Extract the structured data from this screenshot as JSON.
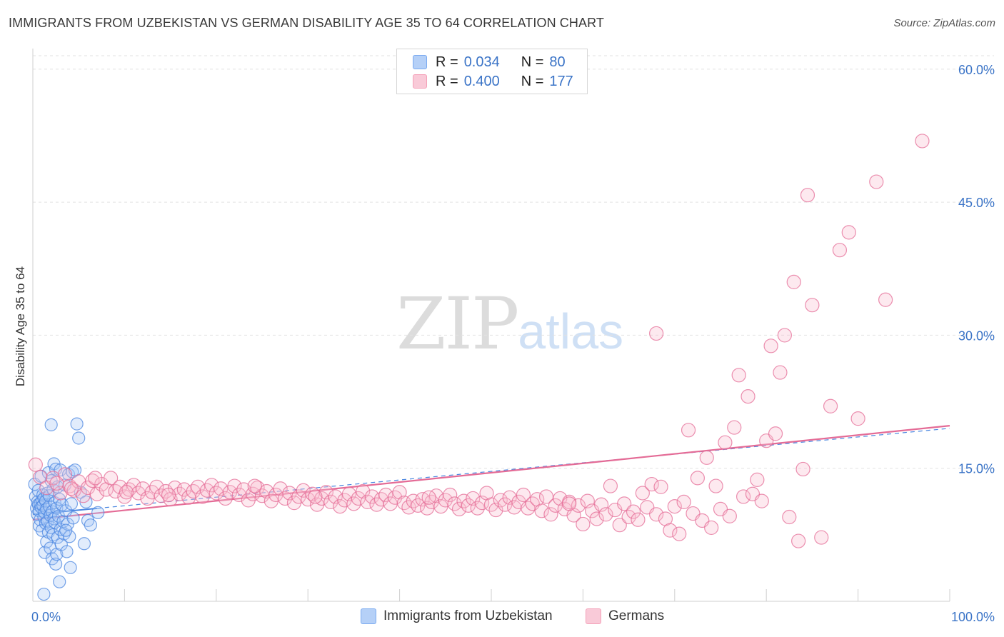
{
  "title": "IMMIGRANTS FROM UZBEKISTAN VS GERMAN DISABILITY AGE 35 TO 64 CORRELATION CHART",
  "source": "Source: ZipAtlas.com",
  "watermark": {
    "zip": "ZIP",
    "atlas": "atlas"
  },
  "legend": {
    "series": [
      {
        "r_label": "R =",
        "r_value": "0.034",
        "n_label": "N =",
        "n_value": "80",
        "color": "#7aaaf0"
      },
      {
        "r_label": "R =",
        "r_value": "0.400",
        "n_label": "N =",
        "n_value": "177",
        "color": "#f4a0b8"
      }
    ]
  },
  "bottom_legend": [
    "Immigrants from Uzbekistan",
    "Germans"
  ],
  "chart_data": {
    "type": "scatter",
    "title": "IMMIGRANTS FROM UZBEKISTAN VS GERMAN DISABILITY AGE 35 TO 64 CORRELATION CHART",
    "xlabel": "",
    "ylabel": "Disability Age 35 to 64",
    "xlim": [
      0,
      100
    ],
    "ylim": [
      0,
      62
    ],
    "x_tick_labels": [
      "0.0%",
      "100.0%"
    ],
    "y_ticks": [
      15,
      30,
      45,
      60
    ],
    "y_tick_labels": [
      "15.0%",
      "30.0%",
      "45.0%",
      "60.0%"
    ],
    "grid": true,
    "legend_position": "top-center",
    "series": [
      {
        "name": "Immigrants from Uzbekistan",
        "color": "#4a86e0",
        "fill": "#a9c8f5",
        "trend": {
          "x": [
            0,
            100
          ],
          "y": [
            9.8,
            19.5
          ],
          "style": "solid-then-dashed",
          "solid_until_x": 7
        },
        "points": [
          [
            0.2,
            13.2
          ],
          [
            0.3,
            11.8
          ],
          [
            0.4,
            10.5
          ],
          [
            0.5,
            11.2
          ],
          [
            0.5,
            9.8
          ],
          [
            0.6,
            10.9
          ],
          [
            0.6,
            12.5
          ],
          [
            0.7,
            10.2
          ],
          [
            0.7,
            8.5
          ],
          [
            0.8,
            11.0
          ],
          [
            0.8,
            9.2
          ],
          [
            0.9,
            10.6
          ],
          [
            0.9,
            14.1
          ],
          [
            1.0,
            11.4
          ],
          [
            1.0,
            8.0
          ],
          [
            1.1,
            10.8
          ],
          [
            1.1,
            12.0
          ],
          [
            1.2,
            9.5
          ],
          [
            1.2,
            11.6
          ],
          [
            1.3,
            10.0
          ],
          [
            1.3,
            5.5
          ],
          [
            1.4,
            11.3
          ],
          [
            1.4,
            8.8
          ],
          [
            1.5,
            6.7
          ],
          [
            1.5,
            10.4
          ],
          [
            1.6,
            12.2
          ],
          [
            1.6,
            9.0
          ],
          [
            1.7,
            7.8
          ],
          [
            1.7,
            14.5
          ],
          [
            1.8,
            10.7
          ],
          [
            1.8,
            11.9
          ],
          [
            1.9,
            6.0
          ],
          [
            1.9,
            9.7
          ],
          [
            2.0,
            13.6
          ],
          [
            2.0,
            8.3
          ],
          [
            2.1,
            10.1
          ],
          [
            2.1,
            4.8
          ],
          [
            2.2,
            7.5
          ],
          [
            2.2,
            12.6
          ],
          [
            2.3,
            9.3
          ],
          [
            2.3,
            15.5
          ],
          [
            2.4,
            11.1
          ],
          [
            2.4,
            8.9
          ],
          [
            2.5,
            4.2
          ],
          [
            2.5,
            14.9
          ],
          [
            2.6,
            10.5
          ],
          [
            2.6,
            5.3
          ],
          [
            2.7,
            7.2
          ],
          [
            2.7,
            12.9
          ],
          [
            2.8,
            9.6
          ],
          [
            2.9,
            2.2
          ],
          [
            2.9,
            11.5
          ],
          [
            3.0,
            8.1
          ],
          [
            3.0,
            14.8
          ],
          [
            3.1,
            6.4
          ],
          [
            3.2,
            10.9
          ],
          [
            3.3,
            9.0
          ],
          [
            3.4,
            7.6
          ],
          [
            3.5,
            13.1
          ],
          [
            3.6,
            10.2
          ],
          [
            3.7,
            5.6
          ],
          [
            3.8,
            8.7
          ],
          [
            3.9,
            14.3
          ],
          [
            4.0,
            7.3
          ],
          [
            4.1,
            3.8
          ],
          [
            4.2,
            11.0
          ],
          [
            4.3,
            14.6
          ],
          [
            4.4,
            9.4
          ],
          [
            4.6,
            14.8
          ],
          [
            4.8,
            20.0
          ],
          [
            5.0,
            18.4
          ],
          [
            5.2,
            12.3
          ],
          [
            5.6,
            6.5
          ],
          [
            5.8,
            11.2
          ],
          [
            6.0,
            9.1
          ],
          [
            6.3,
            8.6
          ],
          [
            7.1,
            10.0
          ],
          [
            1.2,
            0.8
          ],
          [
            3.6,
            8.0
          ],
          [
            2.0,
            19.9
          ]
        ]
      },
      {
        "name": "Germans",
        "color": "#e46b96",
        "fill": "#f8c0d2",
        "trend": {
          "x": [
            0,
            100
          ],
          "y": [
            9.2,
            19.8
          ],
          "style": "solid"
        },
        "points": [
          [
            0.3,
            15.4
          ],
          [
            0.8,
            14.0
          ],
          [
            1.5,
            12.8
          ],
          [
            2.2,
            13.9
          ],
          [
            3.0,
            12.2
          ],
          [
            3.5,
            14.3
          ],
          [
            4.0,
            13.0
          ],
          [
            4.5,
            12.5
          ],
          [
            5.0,
            13.5
          ],
          [
            5.5,
            11.9
          ],
          [
            6.0,
            12.8
          ],
          [
            6.5,
            13.6
          ],
          [
            7.0,
            12.1
          ],
          [
            7.5,
            13.2
          ],
          [
            8.0,
            12.6
          ],
          [
            8.5,
            13.9
          ],
          [
            9.0,
            12.4
          ],
          [
            9.5,
            12.9
          ],
          [
            10.0,
            11.8
          ],
          [
            10.5,
            12.6
          ],
          [
            11.0,
            13.1
          ],
          [
            11.5,
            12.2
          ],
          [
            12.0,
            12.7
          ],
          [
            12.5,
            11.6
          ],
          [
            13.0,
            12.3
          ],
          [
            13.5,
            12.9
          ],
          [
            14.0,
            11.9
          ],
          [
            14.5,
            12.4
          ],
          [
            15.0,
            11.5
          ],
          [
            15.5,
            12.8
          ],
          [
            16.0,
            12.1
          ],
          [
            16.5,
            12.6
          ],
          [
            17.0,
            11.7
          ],
          [
            17.5,
            12.4
          ],
          [
            18.0,
            12.9
          ],
          [
            18.5,
            11.8
          ],
          [
            19.0,
            12.5
          ],
          [
            19.5,
            13.1
          ],
          [
            20.0,
            12.2
          ],
          [
            20.5,
            12.7
          ],
          [
            21.0,
            11.6
          ],
          [
            21.5,
            12.3
          ],
          [
            22.0,
            13.0
          ],
          [
            22.5,
            12.0
          ],
          [
            23.0,
            12.6
          ],
          [
            23.5,
            11.4
          ],
          [
            24.0,
            12.1
          ],
          [
            24.5,
            12.8
          ],
          [
            25.0,
            11.9
          ],
          [
            25.5,
            12.4
          ],
          [
            26.0,
            11.3
          ],
          [
            26.5,
            12.0
          ],
          [
            27.0,
            12.7
          ],
          [
            27.5,
            11.6
          ],
          [
            28.0,
            12.2
          ],
          [
            28.5,
            11.1
          ],
          [
            29.0,
            11.8
          ],
          [
            29.5,
            12.5
          ],
          [
            30.0,
            11.5
          ],
          [
            30.5,
            12.1
          ],
          [
            31.0,
            10.9
          ],
          [
            31.5,
            11.6
          ],
          [
            32.0,
            12.3
          ],
          [
            32.5,
            11.2
          ],
          [
            33.0,
            11.8
          ],
          [
            33.5,
            10.7
          ],
          [
            34.0,
            11.4
          ],
          [
            34.5,
            12.1
          ],
          [
            35.0,
            11.0
          ],
          [
            35.5,
            11.6
          ],
          [
            36.0,
            12.4
          ],
          [
            36.5,
            11.2
          ],
          [
            37.0,
            11.8
          ],
          [
            37.5,
            10.9
          ],
          [
            38.0,
            11.5
          ],
          [
            38.5,
            12.0
          ],
          [
            39.0,
            11.0
          ],
          [
            39.5,
            11.7
          ],
          [
            40.0,
            12.3
          ],
          [
            40.5,
            11.1
          ],
          [
            41.0,
            10.6
          ],
          [
            41.5,
            11.3
          ],
          [
            42.0,
            10.8
          ],
          [
            42.5,
            11.5
          ],
          [
            43.0,
            10.5
          ],
          [
            43.5,
            11.2
          ],
          [
            44.0,
            11.9
          ],
          [
            44.5,
            10.7
          ],
          [
            45.0,
            11.4
          ],
          [
            45.5,
            12.0
          ],
          [
            46.0,
            11.0
          ],
          [
            46.5,
            10.4
          ],
          [
            47.0,
            11.3
          ],
          [
            47.5,
            10.8
          ],
          [
            48.0,
            11.6
          ],
          [
            48.5,
            10.5
          ],
          [
            49.0,
            11.1
          ],
          [
            49.5,
            12.2
          ],
          [
            50.0,
            10.9
          ],
          [
            50.5,
            10.3
          ],
          [
            51.0,
            11.4
          ],
          [
            51.5,
            10.9
          ],
          [
            52.0,
            11.7
          ],
          [
            52.5,
            10.6
          ],
          [
            53.0,
            11.2
          ],
          [
            53.5,
            12.0
          ],
          [
            54.0,
            10.5
          ],
          [
            54.5,
            11.0
          ],
          [
            55.0,
            11.5
          ],
          [
            55.5,
            10.2
          ],
          [
            56.0,
            11.8
          ],
          [
            56.5,
            9.8
          ],
          [
            57.0,
            10.8
          ],
          [
            57.5,
            11.6
          ],
          [
            58.0,
            10.4
          ],
          [
            58.5,
            11.2
          ],
          [
            59.0,
            9.7
          ],
          [
            59.5,
            10.8
          ],
          [
            60.0,
            8.7
          ],
          [
            60.5,
            11.3
          ],
          [
            61.0,
            10.2
          ],
          [
            61.5,
            9.3
          ],
          [
            62.0,
            10.9
          ],
          [
            62.5,
            9.8
          ],
          [
            63.0,
            13.0
          ],
          [
            63.5,
            10.3
          ],
          [
            64.0,
            8.6
          ],
          [
            64.5,
            11.0
          ],
          [
            65.0,
            9.5
          ],
          [
            65.5,
            10.1
          ],
          [
            66.0,
            9.2
          ],
          [
            66.5,
            12.2
          ],
          [
            67.0,
            10.6
          ],
          [
            67.5,
            13.2
          ],
          [
            68.0,
            9.8
          ],
          [
            68.5,
            12.9
          ],
          [
            69.0,
            9.3
          ],
          [
            69.5,
            8.0
          ],
          [
            70.0,
            10.7
          ],
          [
            70.5,
            7.6
          ],
          [
            71.0,
            11.2
          ],
          [
            71.5,
            19.3
          ],
          [
            72.0,
            9.9
          ],
          [
            72.5,
            13.9
          ],
          [
            73.0,
            9.1
          ],
          [
            73.5,
            16.2
          ],
          [
            74.0,
            8.3
          ],
          [
            74.5,
            13.0
          ],
          [
            75.0,
            10.4
          ],
          [
            75.5,
            17.9
          ],
          [
            76.0,
            9.6
          ],
          [
            76.5,
            19.6
          ],
          [
            77.0,
            25.5
          ],
          [
            77.5,
            11.8
          ],
          [
            78.0,
            23.1
          ],
          [
            78.5,
            12.1
          ],
          [
            79.0,
            13.7
          ],
          [
            79.5,
            11.3
          ],
          [
            80.0,
            18.1
          ],
          [
            80.5,
            28.8
          ],
          [
            81.0,
            18.9
          ],
          [
            81.5,
            25.8
          ],
          [
            82.0,
            30.0
          ],
          [
            82.5,
            9.5
          ],
          [
            83.0,
            36.0
          ],
          [
            83.5,
            6.8
          ],
          [
            84.0,
            14.9
          ],
          [
            84.5,
            45.8
          ],
          [
            85.0,
            33.4
          ],
          [
            86.0,
            7.2
          ],
          [
            87.0,
            22.0
          ],
          [
            88.0,
            39.6
          ],
          [
            89.0,
            41.6
          ],
          [
            90.0,
            20.6
          ],
          [
            92.0,
            47.3
          ],
          [
            93.0,
            34.0
          ],
          [
            97.0,
            51.9
          ],
          [
            68.0,
            30.2
          ],
          [
            58.5,
            11.0
          ],
          [
            2.6,
            13.3
          ],
          [
            4.2,
            12.7
          ],
          [
            6.8,
            13.9
          ],
          [
            10.2,
            12.3
          ],
          [
            14.8,
            12.0
          ],
          [
            24.2,
            13.0
          ],
          [
            30.8,
            11.8
          ],
          [
            43.2,
            11.7
          ]
        ]
      }
    ]
  }
}
